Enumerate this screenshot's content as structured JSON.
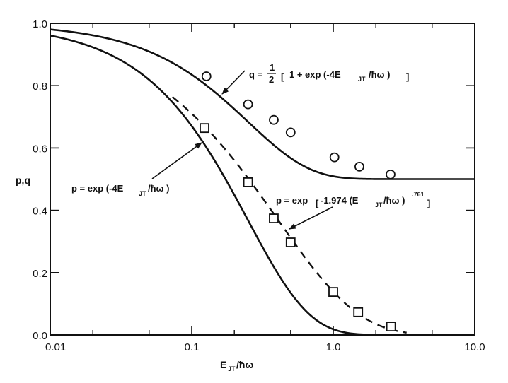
{
  "chart_data": {
    "type": "line",
    "title": "",
    "xlabel": "E_JT / ħω",
    "ylabel": "p,q",
    "xscale": "log",
    "xlim": [
      0.01,
      10.0
    ],
    "ylim": [
      0.0,
      1.0
    ],
    "grid": false,
    "legend": "none (inline annotations with arrows)",
    "x_tick_labels": [
      "0.01",
      "0.1",
      "1.0",
      "10.0"
    ],
    "x_minor_ticks": [
      0.02,
      0.05,
      0.2,
      0.5,
      2,
      5
    ],
    "y_tick_labels": [
      "0.0",
      "0.2",
      "0.4",
      "0.6",
      "0.8",
      "1.0"
    ],
    "y_ticks": [
      0.0,
      0.2,
      0.4,
      0.6,
      0.8,
      1.0
    ],
    "series": [
      {
        "name": "q = 1/2 [1 + exp(-4E_JT/ħω)]",
        "kind": "curve",
        "style": "solid",
        "formula": "q",
        "x_range": [
          0.01,
          10.0
        ],
        "x": [
          0.01,
          0.02,
          0.05,
          0.1,
          0.2,
          0.5,
          1.0,
          2.0,
          5.0,
          10.0
        ],
        "values": [
          0.98,
          0.961,
          0.909,
          0.835,
          0.725,
          0.568,
          0.509,
          0.5,
          0.5,
          0.5
        ]
      },
      {
        "name": "p = exp(-4E_JT/ħω)",
        "kind": "curve",
        "style": "solid",
        "formula": "p",
        "x_range": [
          0.01,
          10.0
        ],
        "x": [
          0.01,
          0.02,
          0.05,
          0.1,
          0.2,
          0.5,
          1.0,
          2.0,
          5.0,
          10.0
        ],
        "values": [
          0.961,
          0.923,
          0.819,
          0.67,
          0.449,
          0.135,
          0.018,
          0.0003,
          0.0,
          0.0
        ]
      },
      {
        "name": "p = exp[-1.974 (E_JT/ħω)^.761]",
        "kind": "curve",
        "style": "dashed",
        "formula": "pfit",
        "x_range": [
          0.073,
          3.3
        ],
        "x": [
          0.073,
          0.1,
          0.2,
          0.5,
          1.0,
          2.0,
          3.3
        ],
        "values": [
          0.764,
          0.71,
          0.552,
          0.311,
          0.139,
          0.035,
          0.006
        ]
      },
      {
        "name": "q data",
        "kind": "markers",
        "marker": "circle",
        "x": [
          0.127,
          0.25,
          0.38,
          0.5,
          1.02,
          1.53,
          2.54
        ],
        "values": [
          0.83,
          0.74,
          0.69,
          0.65,
          0.57,
          0.54,
          0.515
        ]
      },
      {
        "name": "p data",
        "kind": "markers",
        "marker": "square",
        "x": [
          0.123,
          0.25,
          0.38,
          0.5,
          1.0,
          1.5,
          2.56
        ],
        "values": [
          0.664,
          0.49,
          0.374,
          0.297,
          0.138,
          0.073,
          0.027
        ]
      }
    ],
    "annotations": [
      {
        "id": "q_formula",
        "text_parts": {
          "lhs": "q =",
          "frac_num": "1",
          "frac_den": "2",
          "open": "[",
          "body1": "1 + exp (-4E",
          "sub": "JT",
          "body2": "/ħω )",
          "close": "]"
        },
        "arrow_to_series": "q = 1/2 [1 + exp(-4E_JT/ħω)]"
      },
      {
        "id": "p_formula",
        "text_parts": {
          "body1": "p = exp (-4E",
          "sub": "JT",
          "body2": " /ħω )"
        },
        "arrow_to_series": "p = exp(-4E_JT/ħω)"
      },
      {
        "id": "pfit_formula",
        "text_parts": {
          "body1": "p = exp",
          "open": "[",
          "body2": "-1.974 (E",
          "sub": "JT",
          "body3": " /ħω )",
          "sup": ".761",
          "close": "]"
        },
        "arrow_to_series": "p = exp[-1.974 (E_JT/ħω)^.761]"
      }
    ],
    "axis_title_parts": {
      "x_main": "E",
      "x_sub": "JT",
      "x_rest": " /ħω",
      "y": "p,q"
    },
    "colors": {
      "ink": "#111111",
      "background": "#ffffff"
    }
  }
}
